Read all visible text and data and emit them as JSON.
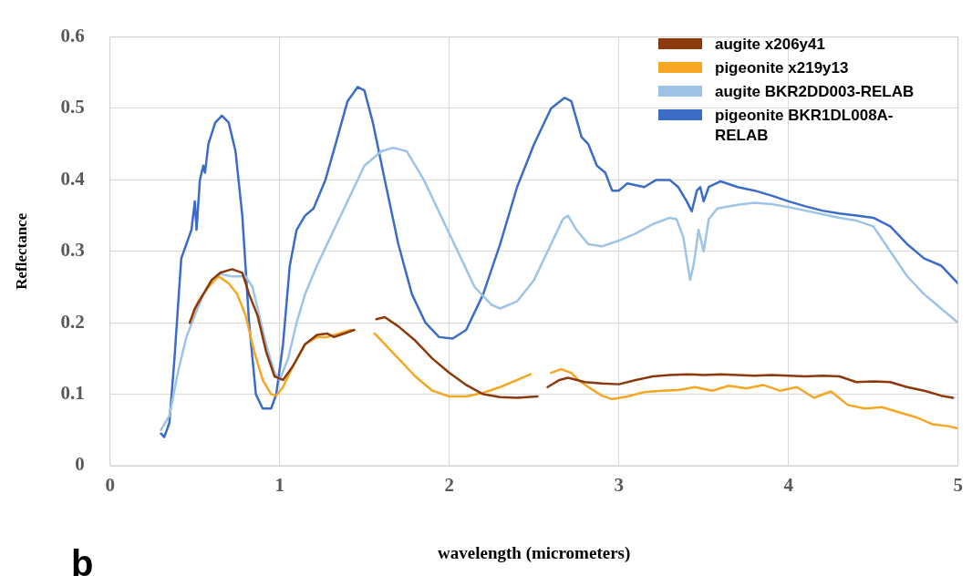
{
  "chart_data": {
    "type": "line",
    "xlabel": "wavelength (micrometers)",
    "ylabel": "Reflectance",
    "annotations": [
      "b"
    ],
    "xlim": [
      0,
      5
    ],
    "xticks": [
      0,
      1,
      2,
      3,
      4,
      5
    ],
    "ylim": [
      0,
      0.6
    ],
    "yticks": [
      0,
      0.1,
      0.2,
      0.3,
      0.4,
      0.5,
      0.6
    ],
    "grid": true,
    "legend": "top right",
    "marker": "none",
    "series": [
      {
        "name": "augite x206y41",
        "color": "#8b3a0e",
        "x": [
          0.47,
          0.5,
          0.55,
          0.6,
          0.65,
          0.72,
          0.78,
          0.82,
          0.87,
          0.92,
          0.97,
          1.02,
          1.08,
          1.15,
          1.22,
          1.28,
          1.32,
          1.38,
          1.44,
          1.5,
          1.57,
          1.62,
          1.7,
          1.8,
          1.9,
          2.0,
          2.1,
          2.2,
          2.3,
          2.4,
          2.52,
          2.55,
          2.58,
          2.65,
          2.7,
          2.8,
          2.9,
          3.0,
          3.1,
          3.2,
          3.3,
          3.4,
          3.5,
          3.6,
          3.7,
          3.8,
          3.9,
          4.0,
          4.1,
          4.2,
          4.3,
          4.4,
          4.5,
          4.6,
          4.7,
          4.8,
          4.9,
          4.97
        ],
        "values": [
          0.2,
          0.22,
          0.24,
          0.26,
          0.27,
          0.275,
          0.27,
          0.24,
          0.21,
          0.16,
          0.125,
          0.12,
          0.14,
          0.17,
          0.183,
          0.185,
          0.18,
          0.185,
          0.19,
          null,
          0.205,
          0.208,
          0.195,
          0.175,
          0.15,
          0.13,
          0.113,
          0.1,
          0.096,
          0.095,
          0.097,
          null,
          0.11,
          0.12,
          0.123,
          0.117,
          0.115,
          0.114,
          0.12,
          0.125,
          0.127,
          0.128,
          0.127,
          0.128,
          0.127,
          0.126,
          0.127,
          0.126,
          0.125,
          0.126,
          0.125,
          0.117,
          0.118,
          0.117,
          0.11,
          0.105,
          0.098,
          0.095
        ]
      },
      {
        "name": "pigeonite x219y13",
        "color": "#f5a623",
        "x": [
          0.47,
          0.52,
          0.58,
          0.64,
          0.7,
          0.75,
          0.8,
          0.85,
          0.9,
          0.95,
          0.98,
          1.02,
          1.08,
          1.15,
          1.22,
          1.28,
          1.35,
          1.42,
          1.5,
          1.56,
          1.62,
          1.7,
          1.8,
          1.9,
          2.0,
          2.1,
          2.2,
          2.3,
          2.4,
          2.48,
          2.55,
          2.6,
          2.66,
          2.72,
          2.76,
          2.82,
          2.9,
          2.96,
          3.05,
          3.15,
          3.25,
          3.35,
          3.45,
          3.55,
          3.65,
          3.75,
          3.85,
          3.95,
          4.05,
          4.15,
          4.25,
          4.35,
          4.45,
          4.55,
          4.65,
          4.75,
          4.85,
          4.95,
          5.0
        ],
        "values": [
          0.2,
          0.23,
          0.25,
          0.265,
          0.255,
          0.24,
          0.21,
          0.16,
          0.12,
          0.1,
          0.098,
          0.11,
          0.14,
          0.17,
          0.18,
          0.18,
          0.185,
          0.19,
          null,
          0.185,
          0.17,
          0.15,
          0.125,
          0.105,
          0.097,
          0.097,
          0.102,
          0.11,
          0.12,
          0.128,
          null,
          0.13,
          0.135,
          0.13,
          0.12,
          0.11,
          0.098,
          0.093,
          0.097,
          0.103,
          0.105,
          0.106,
          0.11,
          0.105,
          0.112,
          0.108,
          0.113,
          0.105,
          0.11,
          0.095,
          0.104,
          0.085,
          0.08,
          0.082,
          0.075,
          0.068,
          0.058,
          0.055,
          0.052
        ]
      },
      {
        "name": "augite BKR2DD003-RELAB",
        "color": "#9dc3e6",
        "x": [
          0.3,
          0.35,
          0.4,
          0.45,
          0.5,
          0.55,
          0.6,
          0.65,
          0.72,
          0.8,
          0.84,
          0.88,
          0.92,
          0.97,
          1.0,
          1.05,
          1.1,
          1.15,
          1.22,
          1.3,
          1.4,
          1.5,
          1.6,
          1.67,
          1.75,
          1.85,
          1.95,
          2.05,
          2.15,
          2.25,
          2.3,
          2.4,
          2.5,
          2.6,
          2.67,
          2.7,
          2.75,
          2.82,
          2.9,
          3.0,
          3.1,
          3.2,
          3.3,
          3.34,
          3.38,
          3.42,
          3.44,
          3.47,
          3.5,
          3.53,
          3.58,
          3.7,
          3.8,
          3.9,
          4.0,
          4.1,
          4.2,
          4.3,
          4.4,
          4.5,
          4.6,
          4.7,
          4.8,
          4.9,
          5.0
        ],
        "values": [
          0.05,
          0.07,
          0.13,
          0.18,
          0.21,
          0.24,
          0.26,
          0.268,
          0.265,
          0.265,
          0.25,
          0.21,
          0.17,
          0.13,
          0.12,
          0.15,
          0.2,
          0.24,
          0.28,
          0.32,
          0.37,
          0.42,
          0.44,
          0.445,
          0.44,
          0.4,
          0.35,
          0.3,
          0.25,
          0.225,
          0.22,
          0.23,
          0.26,
          0.31,
          0.345,
          0.35,
          0.33,
          0.31,
          0.307,
          0.315,
          0.325,
          0.338,
          0.347,
          0.345,
          0.32,
          0.26,
          0.28,
          0.33,
          0.3,
          0.345,
          0.36,
          0.365,
          0.368,
          0.366,
          0.362,
          0.357,
          0.352,
          0.347,
          0.343,
          0.335,
          0.3,
          0.265,
          0.24,
          0.22,
          0.2
        ]
      },
      {
        "name": "pigeonite BKR1DL008A-RELAB",
        "color": "#3a6cc8",
        "x": [
          0.3,
          0.32,
          0.35,
          0.38,
          0.42,
          0.45,
          0.48,
          0.5,
          0.51,
          0.53,
          0.55,
          0.56,
          0.58,
          0.62,
          0.66,
          0.7,
          0.74,
          0.78,
          0.82,
          0.86,
          0.9,
          0.95,
          0.98,
          1.02,
          1.06,
          1.1,
          1.15,
          1.2,
          1.27,
          1.33,
          1.4,
          1.46,
          1.5,
          1.55,
          1.62,
          1.7,
          1.78,
          1.86,
          1.94,
          2.02,
          2.1,
          2.2,
          2.3,
          2.4,
          2.5,
          2.6,
          2.68,
          2.72,
          2.78,
          2.82,
          2.87,
          2.92,
          2.96,
          3.0,
          3.05,
          3.15,
          3.22,
          3.3,
          3.35,
          3.4,
          3.43,
          3.46,
          3.48,
          3.5,
          3.53,
          3.6,
          3.7,
          3.8,
          3.9,
          4.0,
          4.1,
          4.2,
          4.3,
          4.4,
          4.5,
          4.6,
          4.7,
          4.8,
          4.9,
          5.0
        ],
        "values": [
          0.045,
          0.04,
          0.06,
          0.15,
          0.29,
          0.31,
          0.33,
          0.37,
          0.33,
          0.4,
          0.42,
          0.41,
          0.45,
          0.48,
          0.49,
          0.48,
          0.44,
          0.35,
          0.2,
          0.1,
          0.08,
          0.08,
          0.1,
          0.17,
          0.28,
          0.33,
          0.35,
          0.36,
          0.4,
          0.45,
          0.51,
          0.53,
          0.525,
          0.48,
          0.4,
          0.31,
          0.24,
          0.2,
          0.18,
          0.178,
          0.19,
          0.24,
          0.31,
          0.39,
          0.45,
          0.5,
          0.515,
          0.51,
          0.46,
          0.45,
          0.42,
          0.41,
          0.385,
          0.385,
          0.395,
          0.39,
          0.4,
          0.4,
          0.39,
          0.37,
          0.356,
          0.385,
          0.39,
          0.37,
          0.39,
          0.398,
          0.39,
          0.385,
          0.378,
          0.37,
          0.363,
          0.357,
          0.353,
          0.35,
          0.347,
          0.335,
          0.31,
          0.29,
          0.28,
          0.255
        ]
      }
    ]
  }
}
